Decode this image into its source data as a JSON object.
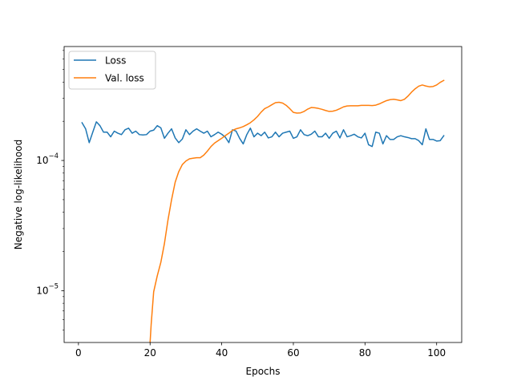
{
  "chart_data": {
    "type": "line",
    "title": "",
    "xlabel": "Epochs",
    "ylabel": "Negative log-likelihood",
    "yscale": "log",
    "xlim": [
      -4,
      107
    ],
    "ylim": [
      4e-06,
      0.00075
    ],
    "x_ticks": [
      0,
      20,
      40,
      60,
      80,
      100
    ],
    "x_tick_labels": [
      "0",
      "20",
      "40",
      "60",
      "80",
      "100"
    ],
    "y_ticks": [
      1e-05,
      0.0001
    ],
    "y_tick_labels": [
      {
        "base": "10",
        "exp": "−5"
      },
      {
        "base": "10",
        "exp": "−4"
      }
    ],
    "grid": false,
    "legend": {
      "position": "top-left"
    },
    "series": [
      {
        "name": "Loss",
        "color": "#1f77b4",
        "x": [
          1,
          2,
          3,
          4,
          5,
          6,
          7,
          8,
          9,
          10,
          11,
          12,
          13,
          14,
          15,
          16,
          17,
          18,
          19,
          20,
          21,
          22,
          23,
          24,
          25,
          26,
          27,
          28,
          29,
          30,
          31,
          32,
          33,
          34,
          35,
          36,
          37,
          38,
          39,
          40,
          41,
          42,
          43,
          44,
          45,
          46,
          47,
          48,
          49,
          50,
          51,
          52,
          53,
          54,
          55,
          56,
          57,
          58,
          59,
          60,
          61,
          62,
          63,
          64,
          65,
          66,
          67,
          68,
          69,
          70,
          71,
          72,
          73,
          74,
          75,
          76,
          77,
          78,
          79,
          80,
          81,
          82,
          83,
          84,
          85,
          86,
          87,
          88,
          89,
          90,
          91,
          92,
          93,
          94,
          95,
          96,
          97,
          98,
          99,
          100,
          101,
          102
        ],
        "y": [
          0.000195,
          0.000175,
          0.000137,
          0.000165,
          0.000198,
          0.000185,
          0.000165,
          0.000165,
          0.000152,
          0.000168,
          0.000162,
          0.000158,
          0.000172,
          0.000177,
          0.000162,
          0.000168,
          0.000158,
          0.000157,
          0.000158,
          0.000168,
          0.000171,
          0.000185,
          0.000178,
          0.000148,
          0.000162,
          0.000175,
          0.000149,
          0.000137,
          0.000146,
          0.000172,
          0.000158,
          0.000168,
          0.000175,
          0.000168,
          0.000162,
          0.000168,
          0.000152,
          0.000158,
          0.000165,
          0.000159,
          0.000151,
          0.000137,
          0.000172,
          0.000168,
          0.000148,
          0.000134,
          0.000158,
          0.000177,
          0.000152,
          0.000162,
          0.000155,
          0.000165,
          0.000149,
          0.000152,
          0.000165,
          0.000152,
          0.000162,
          0.000165,
          0.000168,
          0.000148,
          0.000152,
          0.000172,
          0.000158,
          0.000155,
          0.000159,
          0.000168,
          0.000152,
          0.000152,
          0.000162,
          0.000148,
          0.000162,
          0.000168,
          0.000149,
          0.000172,
          0.000152,
          0.000155,
          0.000159,
          0.000152,
          0.000149,
          0.000162,
          0.000132,
          0.000128,
          0.000165,
          0.000162,
          0.000134,
          0.000155,
          0.000145,
          0.000145,
          0.000152,
          0.000155,
          0.000152,
          0.00015,
          0.000147,
          0.000147,
          0.000142,
          0.000132,
          0.000175,
          0.000145,
          0.000145,
          0.000141,
          0.000142,
          0.000155
        ]
      },
      {
        "name": "Val. loss",
        "color": "#ff7f0e",
        "x": [
          20,
          20.3,
          21,
          22,
          23,
          24,
          25,
          26,
          27,
          28,
          29,
          30,
          31,
          32,
          33,
          34,
          35,
          36,
          37,
          38,
          39,
          40,
          41,
          42,
          43,
          44,
          45,
          46,
          47,
          48,
          49,
          50,
          51,
          52,
          53,
          54,
          55,
          56,
          57,
          58,
          59,
          60,
          61,
          62,
          63,
          64,
          65,
          66,
          67,
          68,
          69,
          70,
          71,
          72,
          73,
          74,
          75,
          76,
          77,
          78,
          79,
          80,
          81,
          82,
          83,
          84,
          85,
          86,
          87,
          88,
          89,
          90,
          91,
          92,
          93,
          94,
          95,
          96,
          97,
          98,
          99,
          100,
          101,
          102
        ],
        "y": [
          4e-06,
          5.5e-06,
          9.8e-06,
          1.3e-05,
          1.65e-05,
          2.3e-05,
          3.5e-05,
          5e-05,
          6.8e-05,
          8.2e-05,
          9.3e-05,
          9.9e-05,
          0.000103,
          0.000104,
          0.000105,
          0.000105,
          0.00011,
          0.000118,
          0.000128,
          0.000136,
          0.000142,
          0.000148,
          0.000155,
          0.000162,
          0.00017,
          0.000175,
          0.000178,
          0.000182,
          0.000188,
          0.000195,
          0.000205,
          0.000218,
          0.000235,
          0.00025,
          0.000258,
          0.000268,
          0.000278,
          0.00028,
          0.000276,
          0.000265,
          0.00025,
          0.000234,
          0.000231,
          0.000232,
          0.000238,
          0.000248,
          0.000255,
          0.000254,
          0.000251,
          0.000247,
          0.000242,
          0.000238,
          0.000239,
          0.000243,
          0.00025,
          0.000258,
          0.000262,
          0.000263,
          0.000263,
          0.000263,
          0.000265,
          0.000265,
          0.000265,
          0.000264,
          0.000266,
          0.000272,
          0.00028,
          0.000288,
          0.000293,
          0.000295,
          0.000292,
          0.000288,
          0.000295,
          0.000312,
          0.000335,
          0.000355,
          0.000372,
          0.00038,
          0.000373,
          0.000368,
          0.00037,
          0.00038,
          0.000398,
          0.000412
        ]
      }
    ]
  }
}
